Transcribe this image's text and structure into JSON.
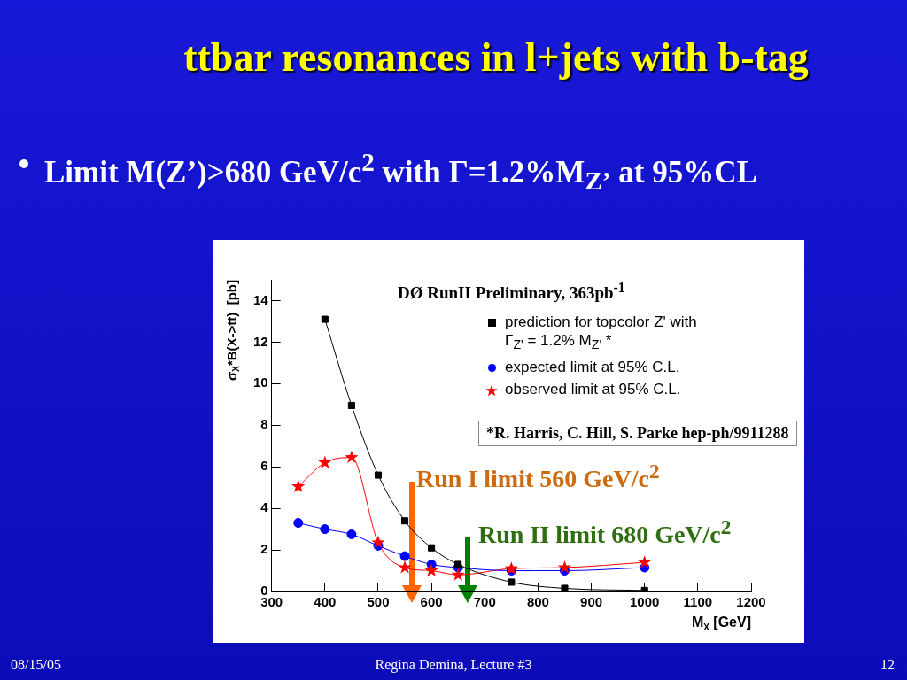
{
  "chart_data": {
    "type": "line",
    "title": "ttbar resonances in l+jets with b-tag",
    "subtitle": "Limit  M(Z’)>680 GeV/c$^{2}$ with Γ=1.2%M$_{Z’}$ at 95%CL",
    "xlabel": "M$_{X}$ [GeV]",
    "ylabel": "σ$_{X}$*B(X->tt)  [pb]",
    "xlim": [
      300,
      1200
    ],
    "xticks": [
      300,
      400,
      500,
      600,
      700,
      800,
      900,
      1000,
      1100,
      1200
    ],
    "ylim": [
      0,
      15
    ],
    "yticks": [
      0,
      2,
      4,
      6,
      8,
      10,
      12,
      14
    ],
    "grid": false,
    "legend": "top right",
    "line_style": "solid",
    "series": [
      {
        "name": "prediction for topcolor Z' with Γ$_{Z'}$ = 1.2% M$_{Z'}$ *",
        "color": "#000000",
        "marker": "square",
        "x": [
          400,
          450,
          500,
          550,
          600,
          650,
          750,
          850,
          1000
        ],
        "values": [
          13.1,
          8.95,
          5.6,
          3.4,
          2.1,
          1.3,
          0.45,
          0.15,
          0.05
        ]
      },
      {
        "name": "expected limit at 95% C.L.",
        "color": "#0000ff",
        "marker": "circle",
        "x": [
          350,
          400,
          450,
          500,
          550,
          600,
          650,
          750,
          850,
          1000
        ],
        "values": [
          3.3,
          3.0,
          2.75,
          2.2,
          1.7,
          1.3,
          1.15,
          1.0,
          1.0,
          1.15
        ]
      },
      {
        "name": "observed limit at 95% C.L.",
        "color": "#ff0000",
        "marker": "star",
        "x": [
          350,
          400,
          450,
          500,
          550,
          600,
          650,
          750,
          850,
          1000
        ],
        "values": [
          5.05,
          6.2,
          6.45,
          2.35,
          1.15,
          1.0,
          0.8,
          1.1,
          1.15,
          1.4
        ]
      }
    ],
    "annotations": [
      "DØ RunII Preliminary, 363pb$^{-1}$",
      "*R. Harris, C. Hill, S. Parke hep-ph/9911288",
      "Run I limit 560 GeV/c$^{2}$",
      "Run II limit 680 GeV/c$^{2}$",
      "08/15/05",
      "Regina Demina, Lecture #3",
      "12"
    ]
  }
}
